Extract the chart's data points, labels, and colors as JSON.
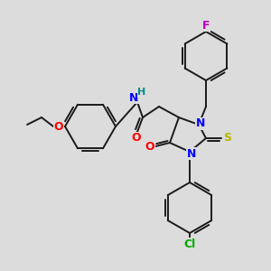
{
  "background_color": "#dcdcdc",
  "bond_color": "#1a1a1a",
  "atoms": {
    "F": {
      "color": "#bb00bb"
    },
    "O": {
      "color": "#ff0000"
    },
    "N": {
      "color": "#0000ff"
    },
    "H": {
      "color": "#008b8b"
    },
    "S": {
      "color": "#b8b800"
    },
    "Cl": {
      "color": "#00aa00"
    }
  },
  "figsize": [
    3.0,
    3.0
  ],
  "dpi": 100
}
